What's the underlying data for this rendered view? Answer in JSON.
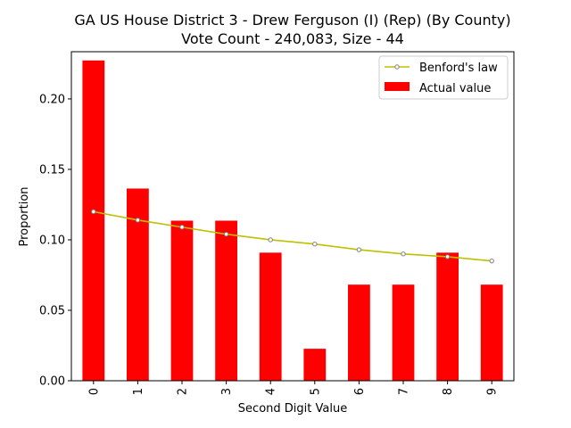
{
  "chart_data": {
    "type": "bar",
    "title": "GA US House District 3 - Drew Ferguson (I) (Rep) (By County)",
    "subtitle": "Vote Count - 240,083, Size - 44",
    "xlabel": "Second Digit Value",
    "ylabel": "Proportion",
    "categories": [
      "0",
      "1",
      "2",
      "3",
      "4",
      "5",
      "6",
      "7",
      "8",
      "9"
    ],
    "ylim": [
      0,
      0.2335
    ],
    "yticks": [
      0.0,
      0.05,
      0.1,
      0.15,
      0.2
    ],
    "ytick_labels": [
      "0.00",
      "0.05",
      "0.10",
      "0.15",
      "0.20"
    ],
    "grid": false,
    "legend_position": "top-right",
    "series": [
      {
        "name": "Benford's law",
        "kind": "line",
        "color": "#bfbf00",
        "marker_color": "#808080",
        "values": [
          0.12,
          0.114,
          0.109,
          0.104,
          0.1,
          0.097,
          0.093,
          0.09,
          0.088,
          0.085
        ]
      },
      {
        "name": "Actual value",
        "kind": "bar",
        "color": "#ff0000",
        "values": [
          0.2273,
          0.1364,
          0.1136,
          0.1136,
          0.0909,
          0.0227,
          0.0682,
          0.0682,
          0.0909,
          0.0682
        ]
      }
    ]
  }
}
